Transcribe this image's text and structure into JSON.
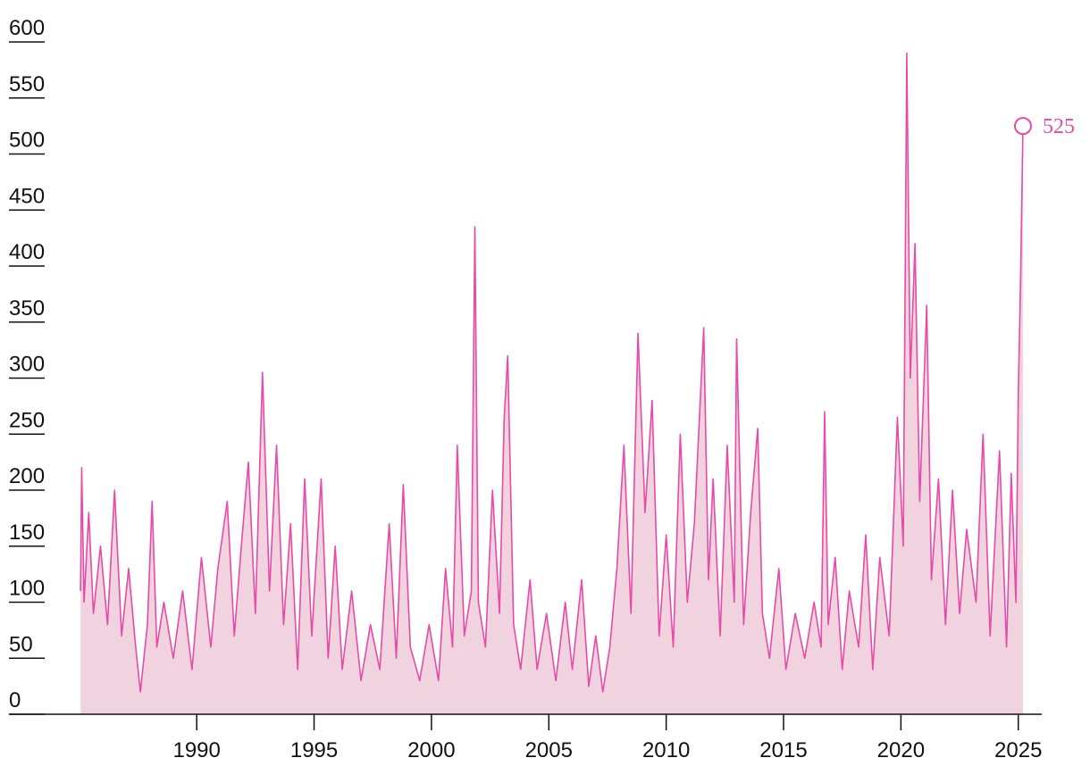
{
  "chart_data": {
    "type": "line",
    "x": [
      1985.05,
      1985.1,
      1985.2,
      1985.4,
      1985.6,
      1985.9,
      1986.2,
      1986.5,
      1986.8,
      1987.1,
      1987.4,
      1987.6,
      1987.9,
      1988.1,
      1988.3,
      1988.6,
      1989,
      1989.4,
      1989.8,
      1990.2,
      1990.6,
      1990.9,
      1991.3,
      1991.6,
      1991.9,
      1992.2,
      1992.5,
      1992.8,
      1993.1,
      1993.4,
      1993.7,
      1994,
      1994.3,
      1994.6,
      1994.9,
      1995.3,
      1995.6,
      1995.9,
      1996.2,
      1996.6,
      1997,
      1997.4,
      1997.8,
      1998.2,
      1998.5,
      1998.8,
      1999.1,
      1999.5,
      1999.9,
      2000.3,
      2000.6,
      2000.9,
      2001.1,
      2001.4,
      2001.7,
      2001.85,
      2002,
      2002.3,
      2002.6,
      2002.9,
      2003.1,
      2003.25,
      2003.5,
      2003.8,
      2004.2,
      2004.5,
      2004.9,
      2005.3,
      2005.7,
      2006,
      2006.4,
      2006.7,
      2007,
      2007.3,
      2007.6,
      2007.9,
      2008.2,
      2008.5,
      2008.8,
      2009.1,
      2009.4,
      2009.7,
      2010,
      2010.3,
      2010.6,
      2010.9,
      2011.2,
      2011.6,
      2011.8,
      2012,
      2012.3,
      2012.6,
      2012.9,
      2013,
      2013.3,
      2013.6,
      2013.9,
      2014.1,
      2014.4,
      2014.8,
      2015.1,
      2015.5,
      2015.9,
      2016.3,
      2016.6,
      2016.75,
      2016.9,
      2017.2,
      2017.5,
      2017.8,
      2018.2,
      2018.5,
      2018.8,
      2019.1,
      2019.5,
      2019.85,
      2020.1,
      2020.25,
      2020.4,
      2020.6,
      2020.8,
      2021.1,
      2021.3,
      2021.6,
      2021.9,
      2022.2,
      2022.5,
      2022.8,
      2023.2,
      2023.5,
      2023.8,
      2024.2,
      2024.5,
      2024.7,
      2024.9,
      2025,
      2025.1,
      2025.2
    ],
    "values": [
      110,
      220,
      100,
      180,
      90,
      150,
      80,
      200,
      70,
      130,
      60,
      20,
      80,
      190,
      60,
      100,
      50,
      110,
      40,
      140,
      60,
      130,
      190,
      70,
      150,
      225,
      90,
      305,
      110,
      240,
      80,
      170,
      40,
      210,
      70,
      210,
      50,
      150,
      40,
      110,
      30,
      80,
      40,
      170,
      50,
      205,
      60,
      30,
      80,
      30,
      130,
      60,
      240,
      70,
      110,
      435,
      100,
      60,
      200,
      90,
      265,
      320,
      80,
      40,
      120,
      40,
      90,
      30,
      100,
      40,
      120,
      25,
      70,
      20,
      60,
      130,
      240,
      90,
      340,
      180,
      280,
      70,
      160,
      60,
      250,
      100,
      170,
      345,
      120,
      210,
      70,
      240,
      100,
      335,
      80,
      180,
      255,
      90,
      50,
      130,
      40,
      90,
      50,
      100,
      60,
      270,
      80,
      140,
      40,
      110,
      60,
      160,
      40,
      140,
      70,
      265,
      150,
      590,
      300,
      420,
      190,
      365,
      120,
      210,
      80,
      200,
      90,
      165,
      100,
      250,
      70,
      235,
      60,
      215,
      100,
      285,
      390,
      525
    ],
    "color": "#e84aa8",
    "area_color": "#f0d3de",
    "xlim": [
      1982,
      2026
    ],
    "xticks": [
      1990,
      1995,
      2000,
      2005,
      2010,
      2015,
      2020,
      2025
    ],
    "ylim": [
      0,
      600
    ],
    "yticks": [
      0,
      50,
      100,
      150,
      200,
      250,
      300,
      350,
      400,
      450,
      500,
      550,
      600
    ]
  }
}
